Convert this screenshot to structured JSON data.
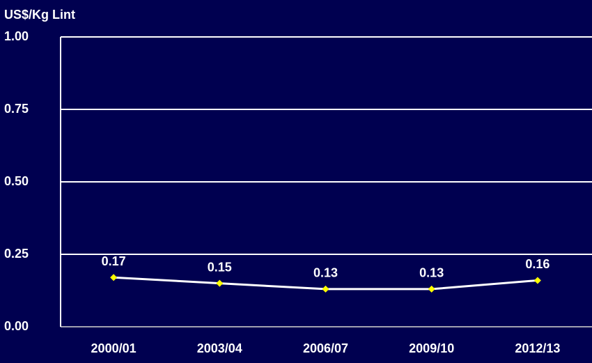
{
  "chart_data": {
    "type": "line",
    "y_label": "US$/Kg Lint",
    "categories": [
      "2000/01",
      "2003/04",
      "2006/07",
      "2009/10",
      "2012/13"
    ],
    "series": [
      {
        "name": "US$/Kg Lint",
        "color": "#ffffff",
        "marker_color": "#ffff00",
        "values": [
          0.17,
          0.15,
          0.13,
          0.13,
          0.16
        ]
      }
    ],
    "ylim": [
      0,
      1
    ],
    "yticks": [
      {
        "value": 0,
        "label": "0.00"
      },
      {
        "value": 0.25,
        "label": "0.25"
      },
      {
        "value": 0.5,
        "label": "0.50"
      },
      {
        "value": 0.75,
        "label": "0.75"
      },
      {
        "value": 1,
        "label": "1.00"
      }
    ],
    "grid": true
  }
}
